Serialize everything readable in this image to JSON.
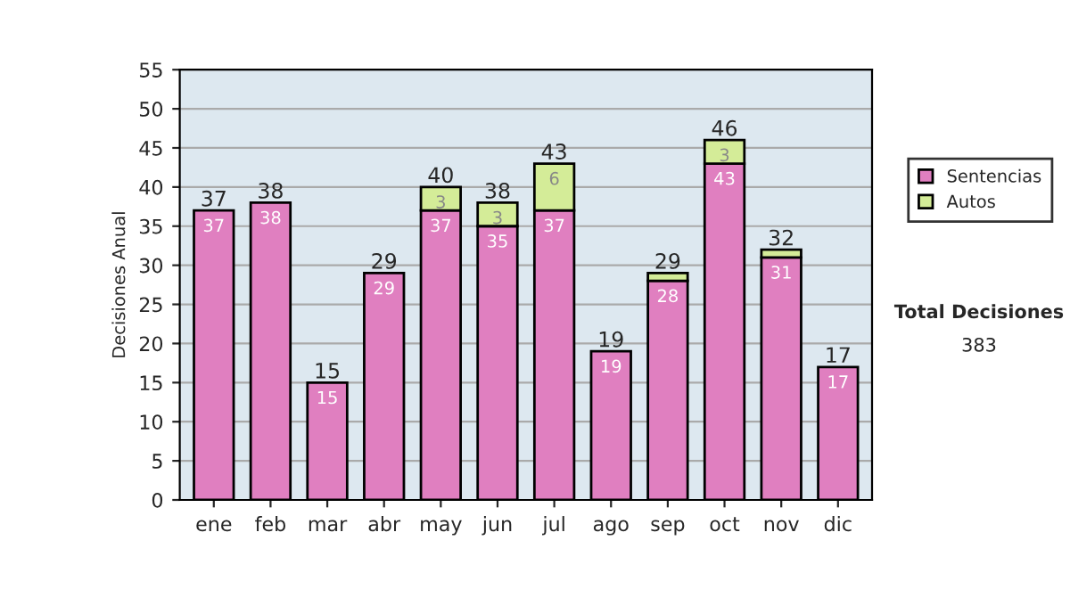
{
  "chart_data": {
    "type": "bar",
    "stacked": true,
    "ylabel": "Decisiones Anual",
    "categories": [
      "ene",
      "feb",
      "mar",
      "abr",
      "may",
      "jun",
      "jul",
      "ago",
      "sep",
      "oct",
      "nov",
      "dic"
    ],
    "series": [
      {
        "name": "Sentencias",
        "color": "#e07fc0",
        "values": [
          37,
          38,
          15,
          29,
          37,
          35,
          37,
          19,
          28,
          43,
          31,
          17
        ],
        "value_labels": [
          "37",
          "38",
          "15",
          "29",
          "37",
          "35",
          "37",
          "19",
          "28",
          "43",
          "31",
          "17"
        ]
      },
      {
        "name": "Autos",
        "color": "#d4ec98",
        "values": [
          null,
          null,
          null,
          null,
          3,
          3,
          6,
          null,
          1,
          3,
          1,
          null
        ],
        "value_labels": [
          null,
          null,
          null,
          null,
          "3",
          "3",
          "6",
          null,
          null,
          "3",
          null,
          null
        ]
      }
    ],
    "totals": [
      "37",
      "38",
      "15",
      "29",
      "40",
      "38",
      "43",
      "19",
      "29",
      "46",
      "32",
      "17"
    ],
    "ylim": [
      0,
      55
    ],
    "yticks": [
      0,
      5,
      10,
      15,
      20,
      25,
      30,
      35,
      40,
      45,
      50,
      55
    ],
    "grid": "y",
    "legend": "right",
    "annotations": [
      "Total Decisiones",
      "383"
    ]
  }
}
